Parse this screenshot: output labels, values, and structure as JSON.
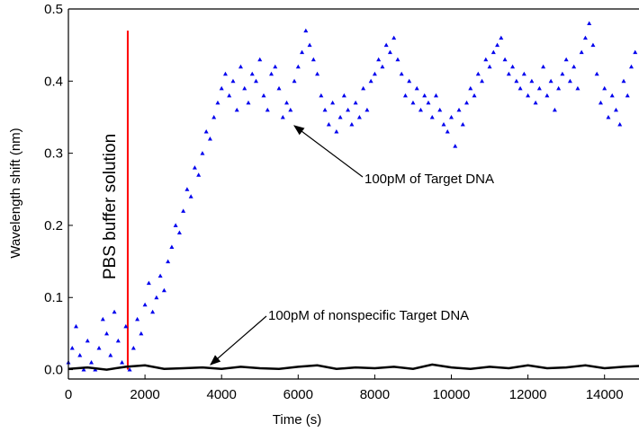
{
  "chart_data": {
    "type": "scatter",
    "xlabel": "Time (s)",
    "ylabel": "Wavelength shift (nm)",
    "xlim": [
      0,
      14900
    ],
    "ylim": [
      -0.013,
      0.5
    ],
    "xticks": [
      0,
      2000,
      4000,
      6000,
      8000,
      10000,
      12000,
      14000
    ],
    "yticks": [
      {
        "value": 0,
        "label": "0.0"
      },
      0.1,
      0.2,
      0.3,
      0.4,
      0.5
    ],
    "series": [
      {
        "color": "#0000ee",
        "marker": "triangle",
        "x": [
          0,
          100,
          200,
          300,
          400,
          500,
          600,
          700,
          800,
          900,
          1000,
          1100,
          1200,
          1300,
          1400,
          1500,
          1600,
          1700,
          1800,
          1900,
          2000,
          2100,
          2200,
          2300,
          2400,
          2500,
          2600,
          2700,
          2800,
          2900,
          3000,
          3100,
          3200,
          3300,
          3400,
          3500,
          3600,
          3700,
          3800,
          3900,
          4000,
          4100,
          4200,
          4300,
          4400,
          4500,
          4600,
          4700,
          4800,
          4900,
          5000,
          5100,
          5200,
          5300,
          5400,
          5500,
          5600,
          5700,
          5800,
          5900,
          6000,
          6100,
          6200,
          6300,
          6400,
          6500,
          6600,
          6700,
          6800,
          6900,
          7000,
          7100,
          7200,
          7300,
          7400,
          7500,
          7600,
          7700,
          7800,
          7900,
          8000,
          8100,
          8200,
          8300,
          8400,
          8500,
          8600,
          8700,
          8800,
          8900,
          9000,
          9100,
          9200,
          9300,
          9400,
          9500,
          9600,
          9700,
          9800,
          9900,
          10000,
          10100,
          10200,
          10300,
          10400,
          10500,
          10600,
          10700,
          10800,
          10900,
          11000,
          11100,
          11200,
          11300,
          11400,
          11500,
          11600,
          11700,
          11800,
          11900,
          12000,
          12100,
          12200,
          12300,
          12400,
          12500,
          12600,
          12700,
          12800,
          12900,
          13000,
          13100,
          13200,
          13300,
          13400,
          13500,
          13600,
          13700,
          13800,
          13900,
          14000,
          14100,
          14200,
          14300,
          14400,
          14500,
          14600,
          14700,
          14800
        ],
        "values": [
          0.01,
          0.03,
          0.06,
          0.02,
          0.0,
          0.04,
          0.01,
          0.0,
          0.03,
          0.07,
          0.05,
          0.02,
          0.08,
          0.04,
          0.01,
          0.06,
          0.0,
          0.03,
          0.07,
          0.05,
          0.09,
          0.12,
          0.08,
          0.1,
          0.13,
          0.11,
          0.15,
          0.17,
          0.2,
          0.19,
          0.22,
          0.25,
          0.24,
          0.28,
          0.27,
          0.3,
          0.33,
          0.32,
          0.35,
          0.37,
          0.39,
          0.41,
          0.38,
          0.4,
          0.36,
          0.42,
          0.39,
          0.37,
          0.41,
          0.4,
          0.43,
          0.38,
          0.36,
          0.41,
          0.42,
          0.39,
          0.35,
          0.37,
          0.36,
          0.4,
          0.42,
          0.44,
          0.47,
          0.45,
          0.43,
          0.41,
          0.38,
          0.36,
          0.34,
          0.37,
          0.33,
          0.35,
          0.38,
          0.36,
          0.34,
          0.37,
          0.35,
          0.39,
          0.36,
          0.4,
          0.41,
          0.43,
          0.42,
          0.45,
          0.44,
          0.46,
          0.43,
          0.41,
          0.38,
          0.4,
          0.37,
          0.39,
          0.36,
          0.38,
          0.37,
          0.35,
          0.38,
          0.36,
          0.34,
          0.33,
          0.35,
          0.31,
          0.36,
          0.34,
          0.37,
          0.39,
          0.38,
          0.41,
          0.4,
          0.43,
          0.42,
          0.44,
          0.45,
          0.46,
          0.43,
          0.41,
          0.42,
          0.4,
          0.39,
          0.41,
          0.38,
          0.4,
          0.37,
          0.39,
          0.42,
          0.38,
          0.4,
          0.36,
          0.39,
          0.41,
          0.43,
          0.4,
          0.42,
          0.39,
          0.44,
          0.46,
          0.48,
          0.45,
          0.41,
          0.37,
          0.39,
          0.35,
          0.38,
          0.36,
          0.34,
          0.4,
          0.38,
          0.42,
          0.44
        ]
      },
      {
        "color": "#000000",
        "marker": "line",
        "x": [
          0,
          500,
          1000,
          1500,
          2000,
          2500,
          3000,
          3500,
          4000,
          4500,
          5000,
          5500,
          6000,
          6500,
          7000,
          7500,
          8000,
          8500,
          9000,
          9500,
          10000,
          10500,
          11000,
          11500,
          12000,
          12500,
          13000,
          13500,
          14000,
          14500,
          14900
        ],
        "values": [
          0.001,
          0.003,
          0.0,
          0.004,
          0.006,
          0.001,
          0.002,
          0.003,
          0.001,
          0.004,
          0.002,
          0.001,
          0.004,
          0.006,
          0.001,
          0.003,
          0.002,
          0.004,
          0.001,
          0.007,
          0.003,
          0.001,
          0.004,
          0.002,
          0.006,
          0.002,
          0.003,
          0.006,
          0.002,
          0.004,
          0.005
        ]
      }
    ],
    "reference_line": {
      "x": 1550,
      "y": [
        0,
        0.47
      ],
      "color": "#ff0000"
    },
    "annotations": [
      "PBS buffer solution",
      "100pM of Target DNA",
      "100pM of nonspecific Target DNA"
    ]
  }
}
